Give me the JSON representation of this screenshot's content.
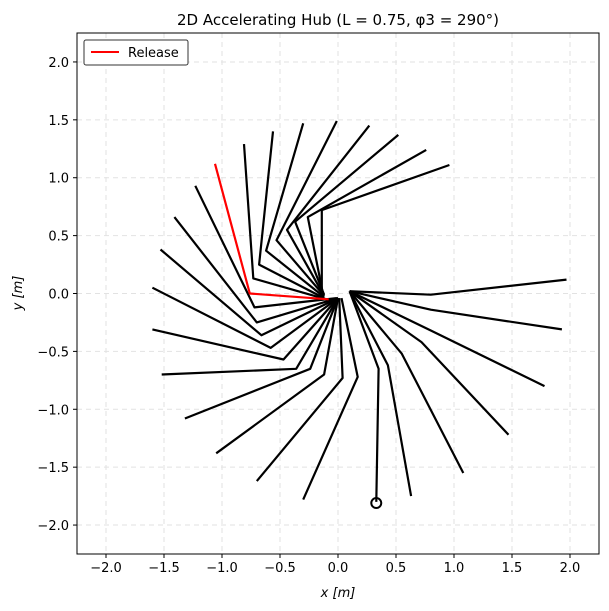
{
  "chart_data": {
    "type": "line",
    "title": "2D Accelerating Hub (L = 0.75, φ3 = 290°)",
    "xlabel": "x [m]",
    "ylabel": "y [m]",
    "xlim": [
      -2.25,
      2.25
    ],
    "ylim": [
      -2.25,
      2.25
    ],
    "xticks": [
      -2.0,
      -1.5,
      -1.0,
      -0.5,
      0.0,
      0.5,
      1.0,
      1.5,
      2.0
    ],
    "yticks": [
      -2.0,
      -1.5,
      -1.0,
      -0.5,
      0.0,
      0.5,
      1.0,
      1.5,
      2.0
    ],
    "xtick_labels": [
      "−2.0",
      "−1.5",
      "−1.0",
      "−0.5",
      "0.0",
      "0.5",
      "1.0",
      "1.5",
      "2.0"
    ],
    "ytick_labels": [
      "−2.0",
      "−1.5",
      "−1.0",
      "−0.5",
      "0.0",
      "0.5",
      "1.0",
      "1.5",
      "2.0"
    ],
    "grid": true,
    "legend_placement": "top-left",
    "colors": {
      "arm": "#000000",
      "release": "#ff0000",
      "grid": "#e2e2e2"
    },
    "series": [
      {
        "name": "",
        "color": "#000000",
        "segments": [
          [
            [
              0.33,
              -1.8
            ],
            [
              0.35,
              -0.65
            ],
            [
              0.1,
              0.02
            ]
          ],
          [
            [
              0.63,
              -1.75
            ],
            [
              0.43,
              -0.62
            ],
            [
              0.1,
              0.02
            ]
          ],
          [
            [
              1.08,
              -1.55
            ],
            [
              0.55,
              -0.52
            ],
            [
              0.1,
              0.02
            ]
          ],
          [
            [
              1.47,
              -1.22
            ],
            [
              0.72,
              -0.42
            ],
            [
              0.1,
              0.02
            ]
          ],
          [
            [
              1.78,
              -0.8
            ],
            [
              0.8,
              -0.32
            ],
            [
              0.1,
              0.02
            ]
          ],
          [
            [
              1.93,
              -0.31
            ],
            [
              0.8,
              -0.14
            ],
            [
              0.1,
              0.02
            ]
          ],
          [
            [
              1.97,
              0.12
            ],
            [
              0.8,
              -0.01
            ],
            [
              0.1,
              0.02
            ]
          ],
          [
            [
              -0.3,
              -1.78
            ],
            [
              0.17,
              -0.72
            ],
            [
              0.03,
              -0.04
            ]
          ],
          [
            [
              -0.7,
              -1.62
            ],
            [
              0.04,
              -0.73
            ],
            [
              0.01,
              -0.04
            ]
          ],
          [
            [
              -1.05,
              -1.38
            ],
            [
              -0.12,
              -0.7
            ],
            [
              0.0,
              -0.04
            ]
          ],
          [
            [
              -1.32,
              -1.08
            ],
            [
              -0.24,
              -0.65
            ],
            [
              0.0,
              -0.04
            ]
          ],
          [
            [
              -1.52,
              -0.7
            ],
            [
              -0.36,
              -0.65
            ],
            [
              0.0,
              -0.04
            ]
          ],
          [
            [
              -1.6,
              -0.31
            ],
            [
              -0.47,
              -0.57
            ],
            [
              0.0,
              -0.04
            ]
          ],
          [
            [
              -1.6,
              0.05
            ],
            [
              -0.58,
              -0.47
            ],
            [
              0.0,
              -0.04
            ]
          ],
          [
            [
              -1.53,
              0.38
            ],
            [
              -0.66,
              -0.36
            ],
            [
              0.0,
              -0.04
            ]
          ],
          [
            [
              -1.41,
              0.66
            ],
            [
              -0.7,
              -0.25
            ],
            [
              0.0,
              -0.04
            ]
          ],
          [
            [
              -1.23,
              0.93
            ],
            [
              -0.72,
              -0.12
            ],
            [
              -0.01,
              -0.04
            ]
          ],
          [
            [
              -0.81,
              1.29
            ],
            [
              -0.73,
              0.13
            ],
            [
              -0.1,
              -0.05
            ]
          ],
          [
            [
              -0.56,
              1.4
            ],
            [
              -0.68,
              0.25
            ],
            [
              -0.12,
              -0.04
            ]
          ],
          [
            [
              -0.3,
              1.47
            ],
            [
              -0.62,
              0.37
            ],
            [
              -0.12,
              -0.03
            ]
          ],
          [
            [
              -0.01,
              1.49
            ],
            [
              -0.53,
              0.46
            ],
            [
              -0.12,
              -0.02
            ]
          ],
          [
            [
              0.27,
              1.45
            ],
            [
              -0.44,
              0.55
            ],
            [
              -0.12,
              -0.02
            ]
          ],
          [
            [
              0.52,
              1.37
            ],
            [
              -0.37,
              0.62
            ],
            [
              -0.12,
              -0.01
            ]
          ],
          [
            [
              0.76,
              1.24
            ],
            [
              -0.26,
              0.66
            ],
            [
              -0.13,
              0.0
            ]
          ],
          [
            [
              0.96,
              1.11
            ],
            [
              -0.14,
              0.72
            ],
            [
              -0.14,
              0.0
            ]
          ]
        ]
      },
      {
        "name": "Release",
        "color": "#ff0000",
        "segments": [
          [
            [
              -1.06,
              1.12
            ],
            [
              -0.76,
              0.0
            ],
            [
              -0.08,
              -0.05
            ]
          ]
        ]
      }
    ],
    "hub_marker": {
      "x": 0.33,
      "y": -1.81
    }
  }
}
